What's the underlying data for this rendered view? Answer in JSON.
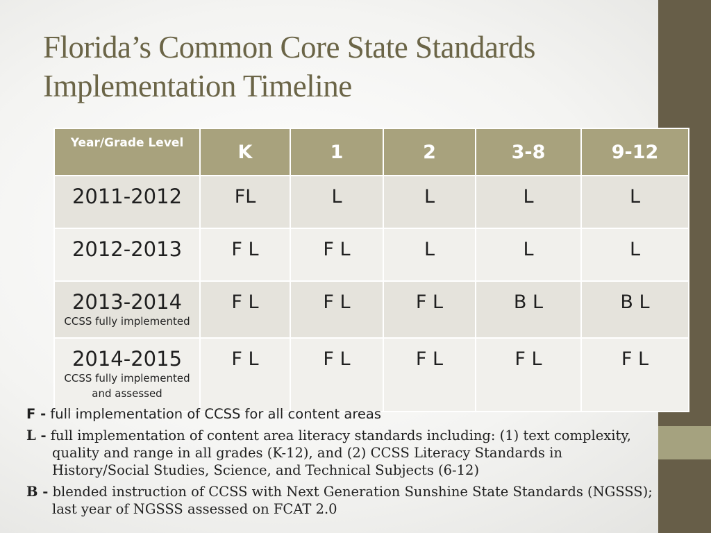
{
  "slide": {
    "title_line1": "Florida’s Common Core State Standards",
    "title_line2": "Implementation Timeline"
  },
  "table": {
    "header": [
      "Year/Grade Level",
      "K",
      "1",
      "2",
      "3-8",
      "9-12"
    ],
    "rows": [
      {
        "year": "2011-2012",
        "note": "",
        "note2": "",
        "values": [
          "FL",
          "L",
          "L",
          "L",
          "L"
        ]
      },
      {
        "year": "2012-2013",
        "note": "",
        "note2": "",
        "values": [
          "F L",
          "F L",
          "L",
          "L",
          "L"
        ]
      },
      {
        "year": "2013-2014",
        "note": "CCSS fully implemented",
        "note2": "",
        "values": [
          "F L",
          "F L",
          "F L",
          "B L",
          "B L"
        ]
      },
      {
        "year": "2014-2015",
        "note": "CCSS fully implemented",
        "note2": "and assessed",
        "values": [
          "F L",
          "F L",
          "F L",
          "F L",
          "F L"
        ]
      }
    ]
  },
  "legend": [
    {
      "key": "F -",
      "text": " full implementation of CCSS for all content areas"
    },
    {
      "key": "L -",
      "text": " full implementation of content area literacy standards including:  (1) text complexity, quality and range in all grades (K-12), and (2) CCSS Literacy Standards in History/Social Studies, Science, and Technical Subjects (6-12)"
    },
    {
      "key": "B -",
      "text": " blended instruction of CCSS with Next Generation Sunshine State Standards (NGSSS); last year of NGSSS assessed on FCAT 2.0"
    }
  ],
  "colors": {
    "sidebar": "#675e48",
    "sidebar_accent": "#a5a27f",
    "header_fill": "#a8a27d",
    "title_text": "#6b6547"
  }
}
